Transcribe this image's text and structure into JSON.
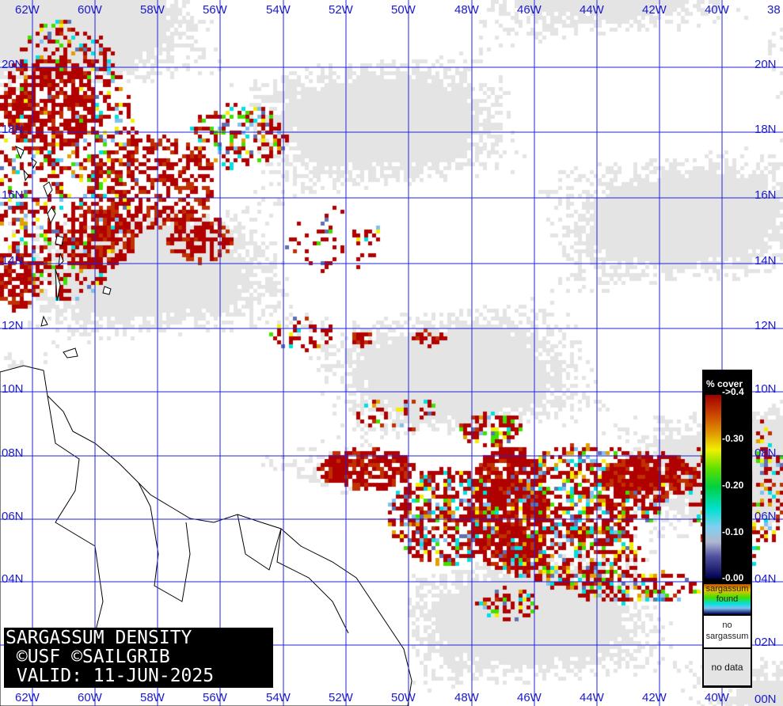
{
  "map": {
    "longitude_labels": [
      "62W",
      "60W",
      "58W",
      "56W",
      "54W",
      "52W",
      "50W",
      "48W",
      "46W",
      "44W",
      "42W",
      "40W",
      "38"
    ],
    "latitude_labels": [
      "20N",
      "18N",
      "16N",
      "14N",
      "12N",
      "10N",
      "08N",
      "06N",
      "04N",
      "02N",
      "00N"
    ],
    "grid_color": "#2222dd",
    "no_data_color": "#e4e4e4"
  },
  "title_box": {
    "line1": "SARGASSUM DENSITY",
    "line2": " ©USF ©SAILGRIB",
    "line3": " VALID: 11-JUN-2025"
  },
  "legend": {
    "header": "% cover",
    "ticks": [
      "->0.4",
      "-0.30",
      "-0.20",
      "-0.10",
      "-0.00"
    ],
    "found_label": "sargassum found",
    "no_sargassum_label": "no sargassum",
    "no_data_label": "no data",
    "scale_colors": [
      "#a00000",
      "#e09000",
      "#f0f000",
      "#00d040",
      "#00e0d0",
      "#b0b8d0",
      "#000050"
    ]
  }
}
